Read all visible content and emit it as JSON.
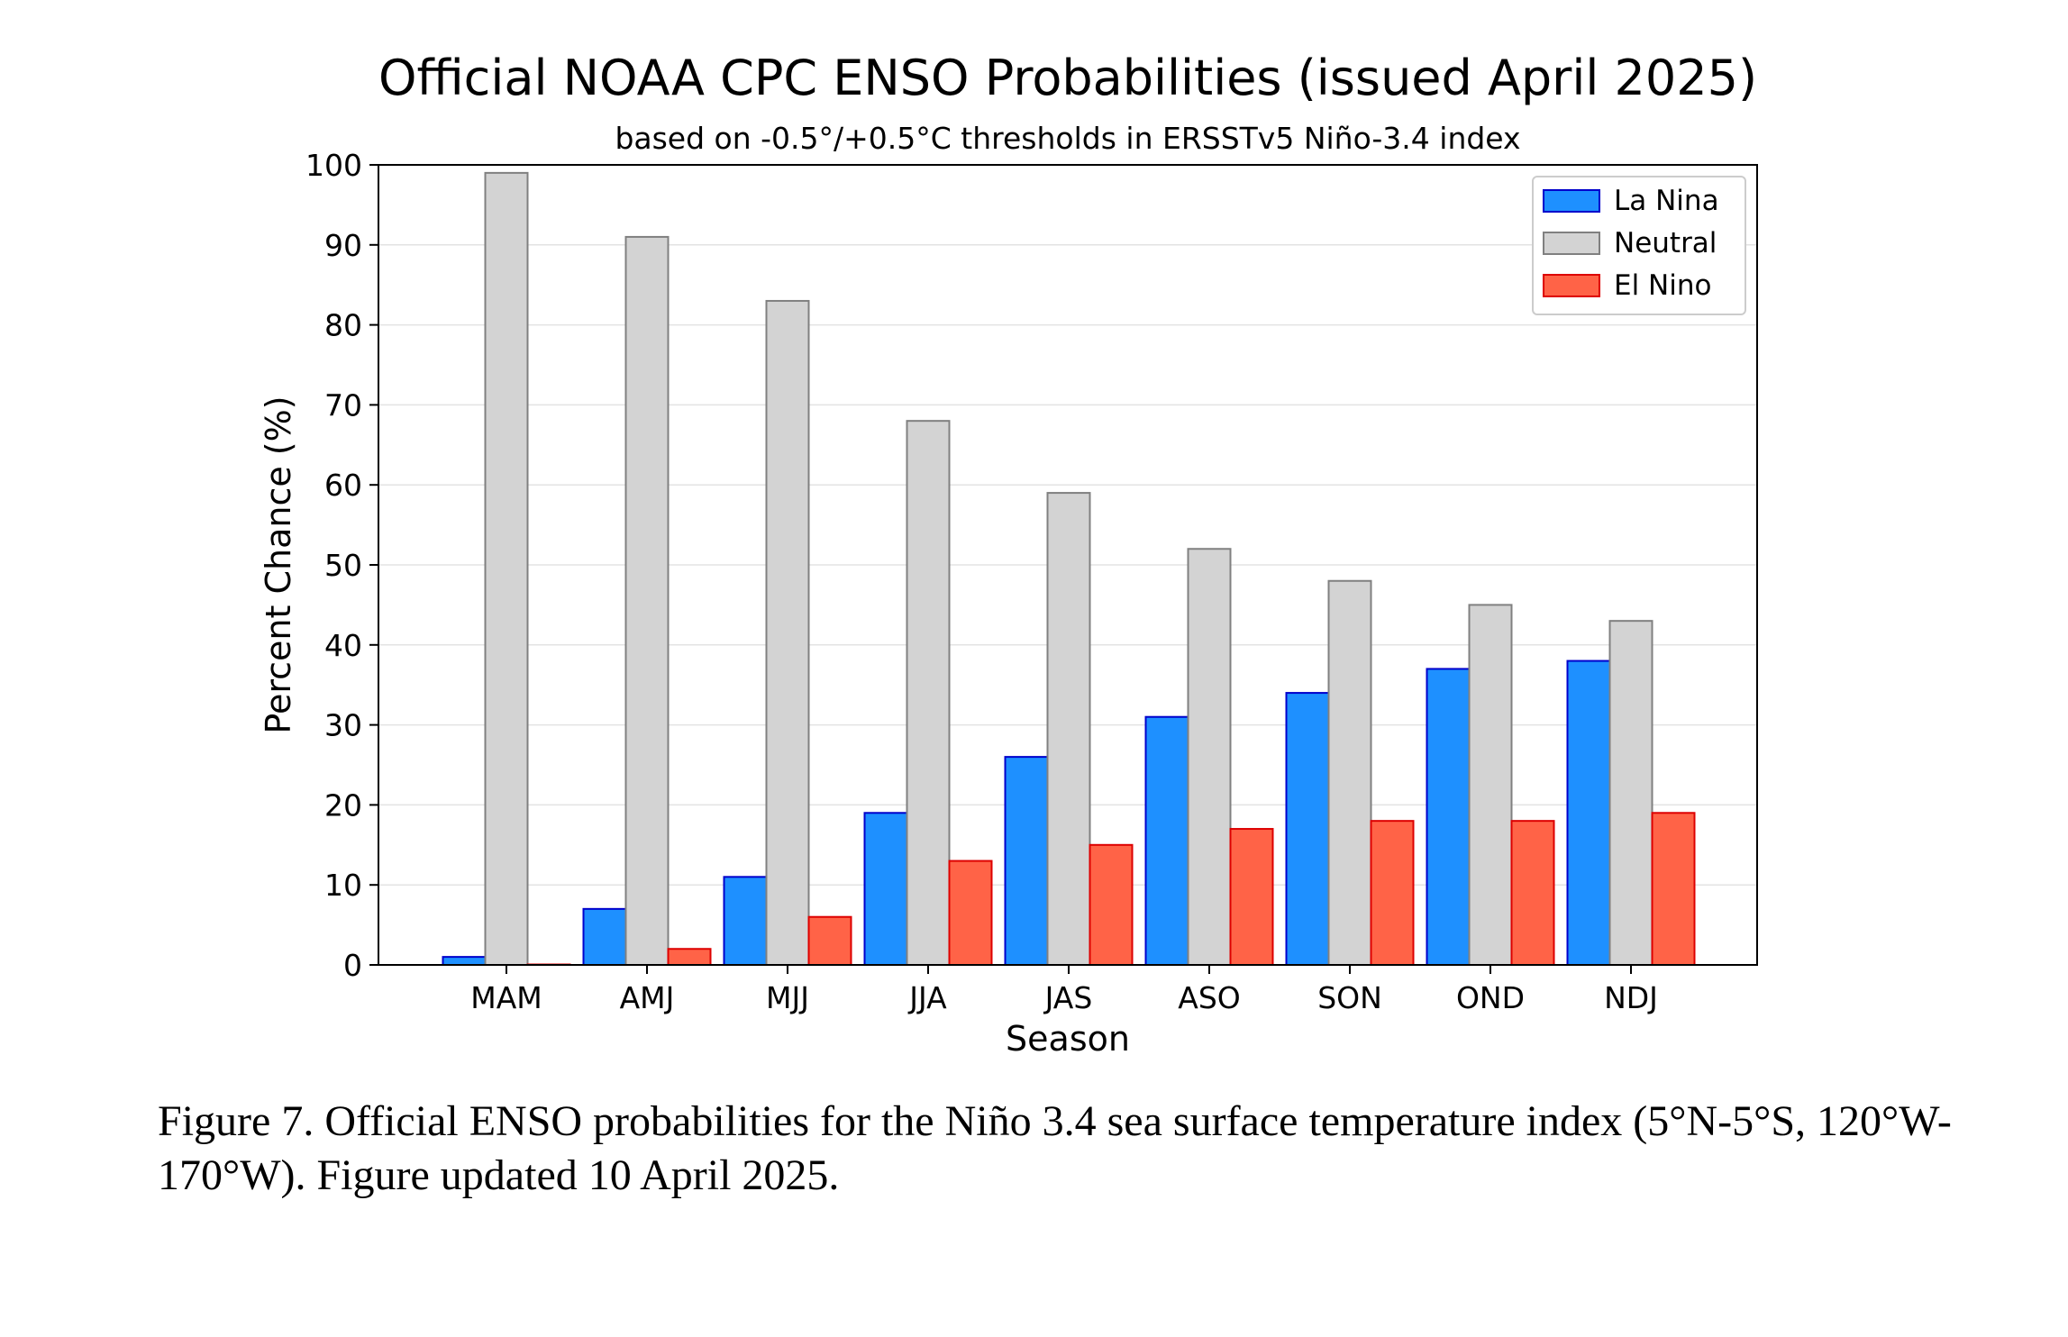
{
  "chart_data": {
    "type": "bar",
    "title": "Official NOAA CPC ENSO Probabilities (issued April 2025)",
    "subtitle": "based on -0.5°/+0.5°C thresholds in ERSSTv5 Niño-3.4 index",
    "xlabel": "Season",
    "ylabel": "Percent Chance (%)",
    "ylim": [
      0,
      100
    ],
    "yticks": [
      "0",
      "10",
      "20",
      "30",
      "40",
      "50",
      "60",
      "70",
      "80",
      "90",
      "100"
    ],
    "grid": true,
    "legend_position": "top-right",
    "categories": [
      "MAM",
      "AMJ",
      "MJJ",
      "JJA",
      "JAS",
      "ASO",
      "SON",
      "OND",
      "NDJ"
    ],
    "series": [
      {
        "name": "La Nina",
        "color": "#1E90FF",
        "edge": "#0000CC",
        "values": [
          1,
          7,
          11,
          19,
          26,
          31,
          34,
          37,
          38
        ]
      },
      {
        "name": "Neutral",
        "color": "#D3D3D3",
        "edge": "#808080",
        "values": [
          99,
          91,
          83,
          68,
          59,
          52,
          48,
          45,
          43
        ]
      },
      {
        "name": "El Nino",
        "color": "#FF6347",
        "edge": "#DD0000",
        "values": [
          0,
          2,
          6,
          13,
          15,
          17,
          18,
          18,
          19
        ]
      }
    ]
  },
  "caption": "Figure 7. Official ENSO probabilities for the Niño 3.4 sea surface temperature index (5°N-5°S, 120°W-170°W). Figure updated 10 April 2025."
}
